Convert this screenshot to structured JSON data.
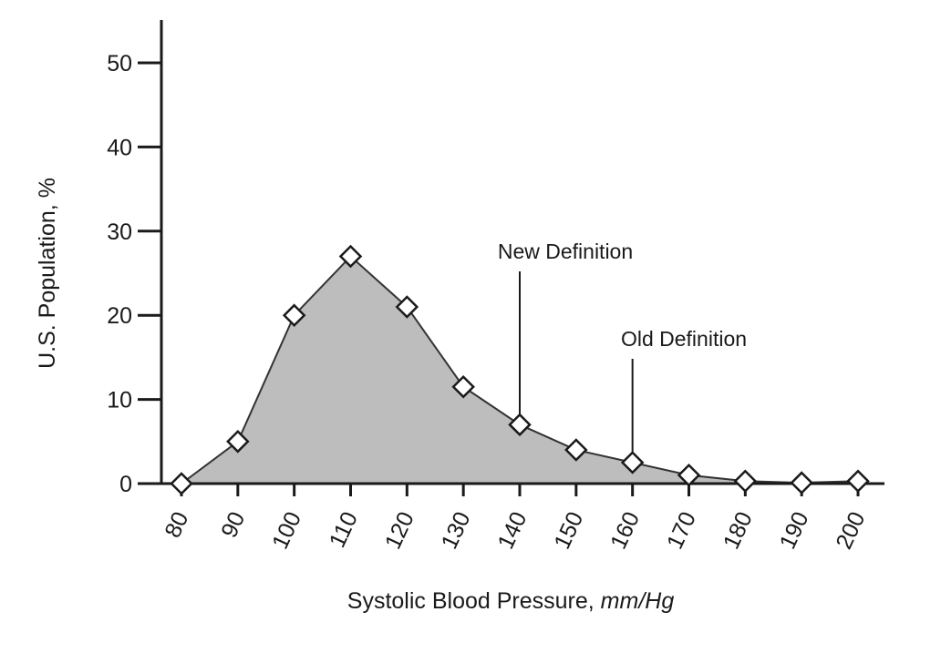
{
  "chart_data": {
    "type": "area",
    "x": [
      80,
      90,
      100,
      110,
      120,
      130,
      140,
      150,
      160,
      170,
      180,
      190,
      200
    ],
    "values": [
      0,
      5,
      20,
      27,
      21,
      11.5,
      7,
      4,
      2.5,
      1,
      0.3,
      0.1,
      0.3
    ],
    "xlabel": "Systolic Blood Pressure, ",
    "xlabel_units": "mm/Hg",
    "ylabel": "U.S. Population, %",
    "xticks": [
      "80",
      "90",
      "100",
      "110",
      "120",
      "130",
      "140",
      "150",
      "160",
      "170",
      "180",
      "190",
      "200"
    ],
    "yticks": [
      "0",
      "10",
      "20",
      "30",
      "40",
      "50"
    ],
    "xlim": [
      78,
      204
    ],
    "ylim": [
      0,
      55
    ],
    "fill_color": "#bdbdbd",
    "marker": "diamond",
    "grid": false,
    "annotations": [
      {
        "text": "New Definition",
        "x": 140
      },
      {
        "text": "Old Definition",
        "x": 160
      }
    ]
  }
}
